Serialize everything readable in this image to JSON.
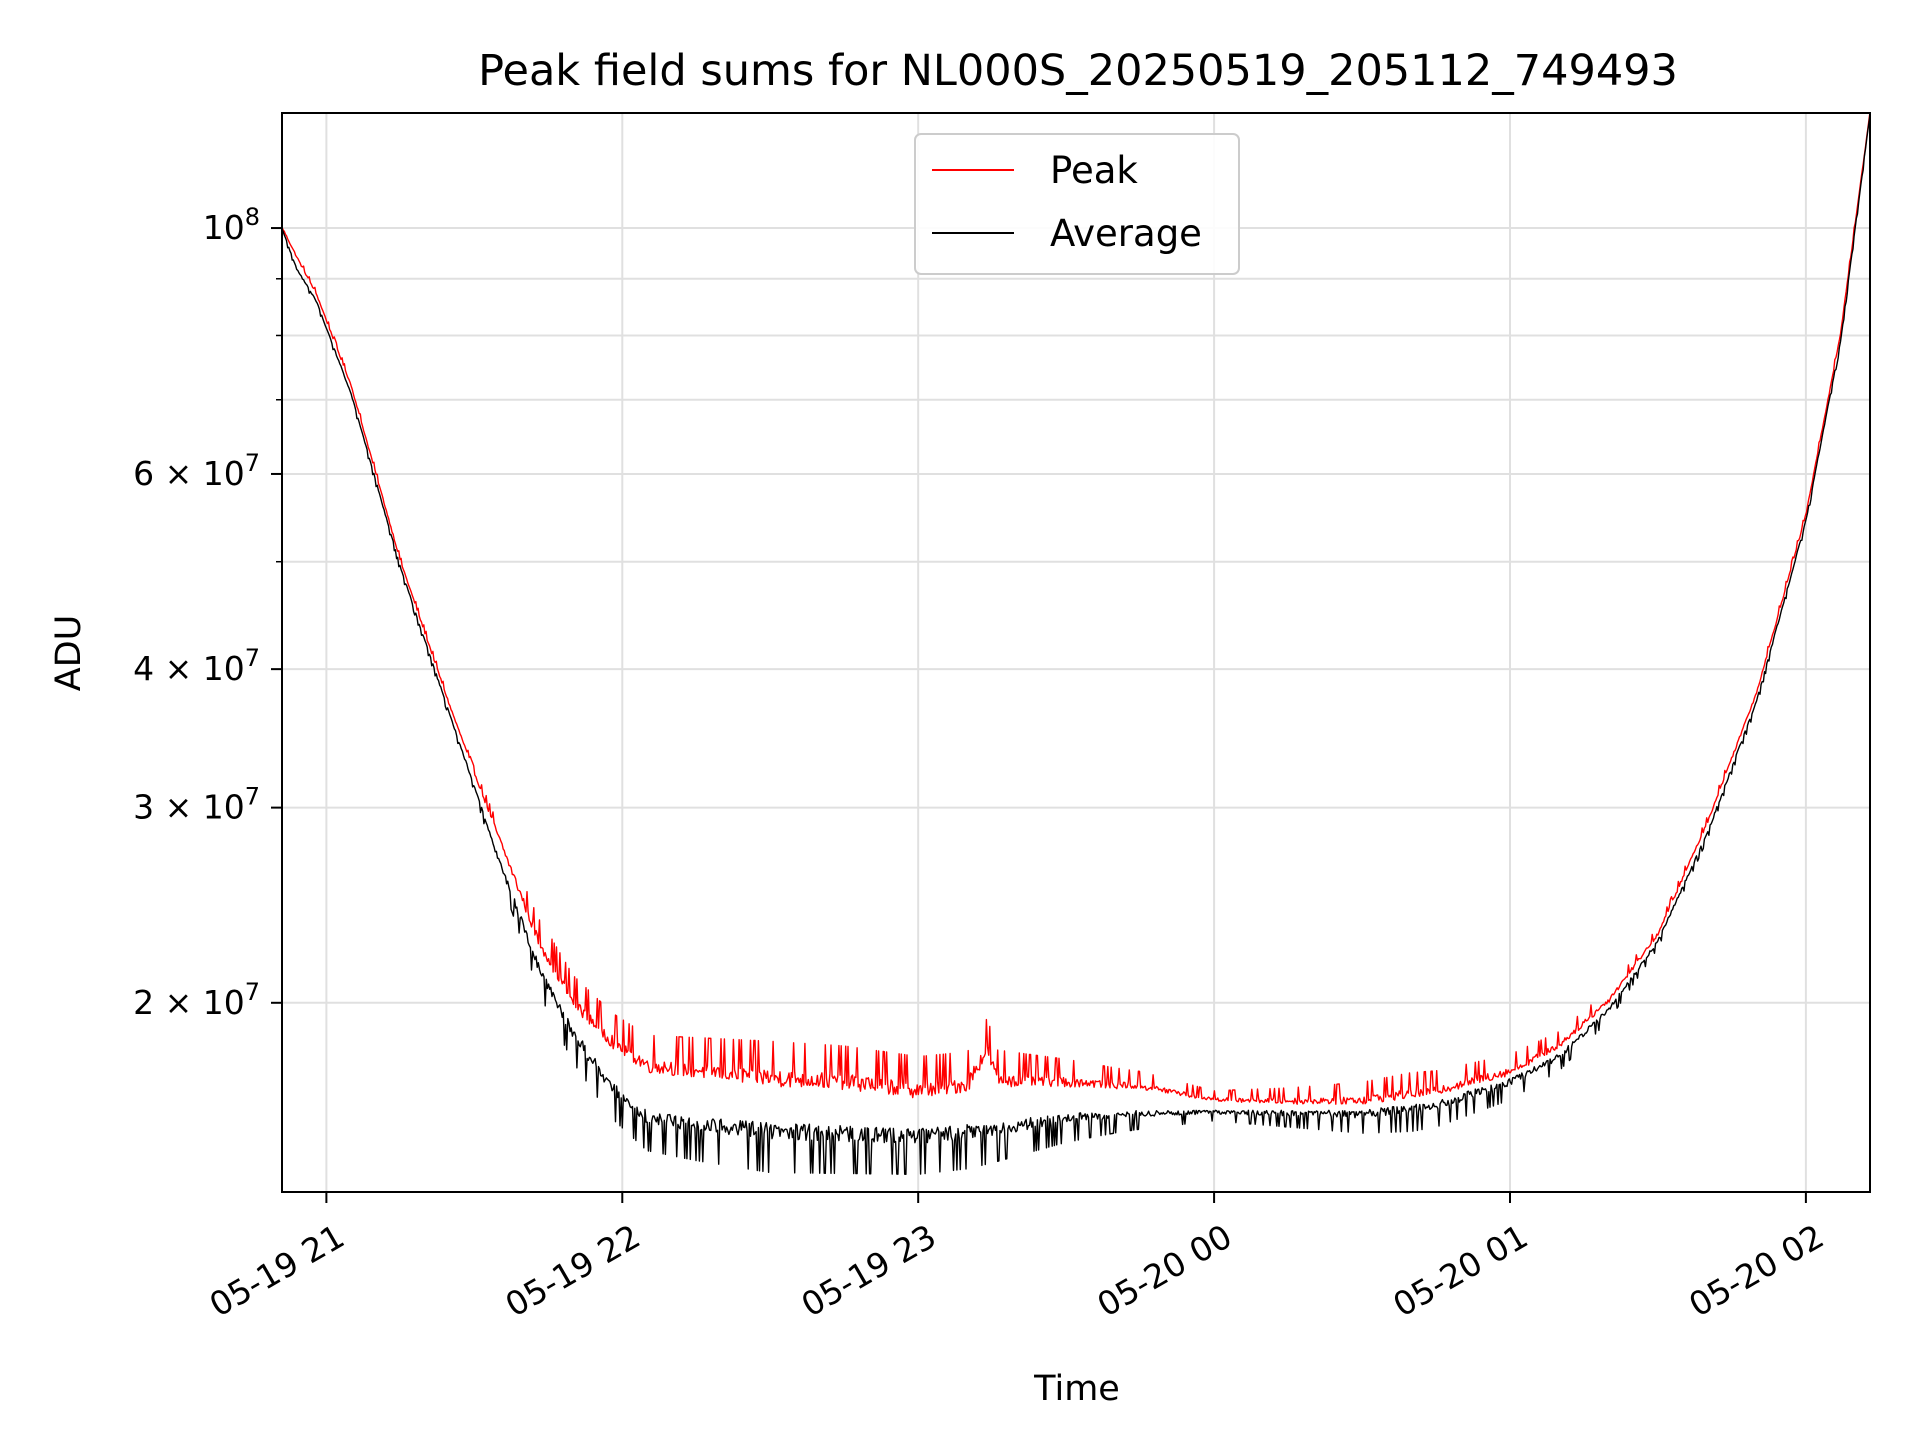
{
  "chart_data": {
    "type": "line",
    "title": "Peak field sums for NL000S_20250519_205112_749493",
    "xlabel": "Time",
    "ylabel": "ADU",
    "x_axis": {
      "kind": "datetime",
      "range": [
        "2025-05-19 20:51",
        "2025-05-20 02:13"
      ],
      "ticks": [
        {
          "t": "2025-05-19 21:00",
          "label": "05-19 21"
        },
        {
          "t": "2025-05-19 22:00",
          "label": "05-19 22"
        },
        {
          "t": "2025-05-19 23:00",
          "label": "05-19 23"
        },
        {
          "t": "2025-05-20 00:00",
          "label": "05-20 00"
        },
        {
          "t": "2025-05-20 01:00",
          "label": "05-20 01"
        },
        {
          "t": "2025-05-20 02:00",
          "label": "05-20 02"
        }
      ]
    },
    "y_axis": {
      "scale": "log",
      "range": [
        13500000,
        127000000
      ],
      "ticks": [
        {
          "value": 100000000,
          "base": "10",
          "exp": "8"
        },
        {
          "value": 60000000,
          "base": "6 × 10",
          "exp": "7"
        },
        {
          "value": 40000000,
          "base": "4 × 10",
          "exp": "7"
        },
        {
          "value": 30000000,
          "base": "3 × 10",
          "exp": "7"
        },
        {
          "value": 20000000,
          "base": "2 × 10",
          "exp": "7"
        }
      ],
      "minor_ticks": [
        90000000,
        80000000,
        70000000,
        50000000
      ]
    },
    "grid": true,
    "legend": {
      "position": "top-center"
    },
    "series": [
      {
        "name": "Peak",
        "color": "#ff0000",
        "points": [
          [
            "2025-05-19 20:51",
            100000000
          ],
          [
            "2025-05-19 20:54",
            94000000
          ],
          [
            "2025-05-19 20:58",
            87000000
          ],
          [
            "2025-05-19 21:05",
            72000000
          ],
          [
            "2025-05-19 21:15",
            50000000
          ],
          [
            "2025-05-19 21:25",
            37000000
          ],
          [
            "2025-05-19 21:35",
            28000000
          ],
          [
            "2025-05-19 21:43",
            22500000
          ],
          [
            "2025-05-19 21:50",
            19800000
          ],
          [
            "2025-05-19 21:58",
            18200000
          ],
          [
            "2025-05-19 22:05",
            17300000
          ],
          [
            "2025-05-19 22:15",
            17100000
          ],
          [
            "2025-05-19 22:30",
            16800000
          ],
          [
            "2025-05-19 22:45",
            16700000
          ],
          [
            "2025-05-19 23:00",
            16400000
          ],
          [
            "2025-05-19 23:10",
            16600000
          ],
          [
            "2025-05-19 23:14",
            17900000
          ],
          [
            "2025-05-19 23:16",
            16800000
          ],
          [
            "2025-05-19 23:30",
            16800000
          ],
          [
            "2025-05-19 23:45",
            16700000
          ],
          [
            "2025-05-20 00:00",
            16300000
          ],
          [
            "2025-05-20 00:15",
            16200000
          ],
          [
            "2025-05-20 00:30",
            16200000
          ],
          [
            "2025-05-20 00:45",
            16500000
          ],
          [
            "2025-05-20 01:00",
            17200000
          ],
          [
            "2025-05-20 01:10",
            18200000
          ],
          [
            "2025-05-20 01:20",
            20000000
          ],
          [
            "2025-05-20 01:30",
            23000000
          ],
          [
            "2025-05-20 01:40",
            29000000
          ],
          [
            "2025-05-20 01:50",
            38000000
          ],
          [
            "2025-05-20 02:00",
            55000000
          ],
          [
            "2025-05-20 02:07",
            80000000
          ],
          [
            "2025-05-20 02:13",
            127000000
          ]
        ]
      },
      {
        "name": "Average",
        "color": "#000000",
        "points": [
          [
            "2025-05-19 20:51",
            100000000
          ],
          [
            "2025-05-19 20:54",
            92000000
          ],
          [
            "2025-05-19 20:58",
            86000000
          ],
          [
            "2025-05-19 21:05",
            71000000
          ],
          [
            "2025-05-19 21:15",
            49500000
          ],
          [
            "2025-05-19 21:25",
            36500000
          ],
          [
            "2025-05-19 21:35",
            27000000
          ],
          [
            "2025-05-19 21:43",
            21800000
          ],
          [
            "2025-05-19 21:50",
            19000000
          ],
          [
            "2025-05-19 21:58",
            17000000
          ],
          [
            "2025-05-19 22:05",
            16000000
          ],
          [
            "2025-05-19 22:15",
            15800000
          ],
          [
            "2025-05-19 22:30",
            15600000
          ],
          [
            "2025-05-19 22:45",
            15500000
          ],
          [
            "2025-05-19 23:00",
            15400000
          ],
          [
            "2025-05-19 23:15",
            15600000
          ],
          [
            "2025-05-19 23:30",
            15900000
          ],
          [
            "2025-05-19 23:45",
            16000000
          ],
          [
            "2025-05-20 00:00",
            16000000
          ],
          [
            "2025-05-20 00:15",
            16000000
          ],
          [
            "2025-05-20 00:30",
            16000000
          ],
          [
            "2025-05-20 00:45",
            16300000
          ],
          [
            "2025-05-20 01:00",
            17100000
          ],
          [
            "2025-05-20 01:10",
            18000000
          ],
          [
            "2025-05-20 01:20",
            19800000
          ],
          [
            "2025-05-20 01:30",
            22800000
          ],
          [
            "2025-05-20 01:40",
            28500000
          ],
          [
            "2025-05-20 01:50",
            37500000
          ],
          [
            "2025-05-20 02:00",
            54500000
          ],
          [
            "2025-05-20 02:07",
            79000000
          ],
          [
            "2025-05-20 02:13",
            127000000
          ]
        ]
      }
    ]
  }
}
